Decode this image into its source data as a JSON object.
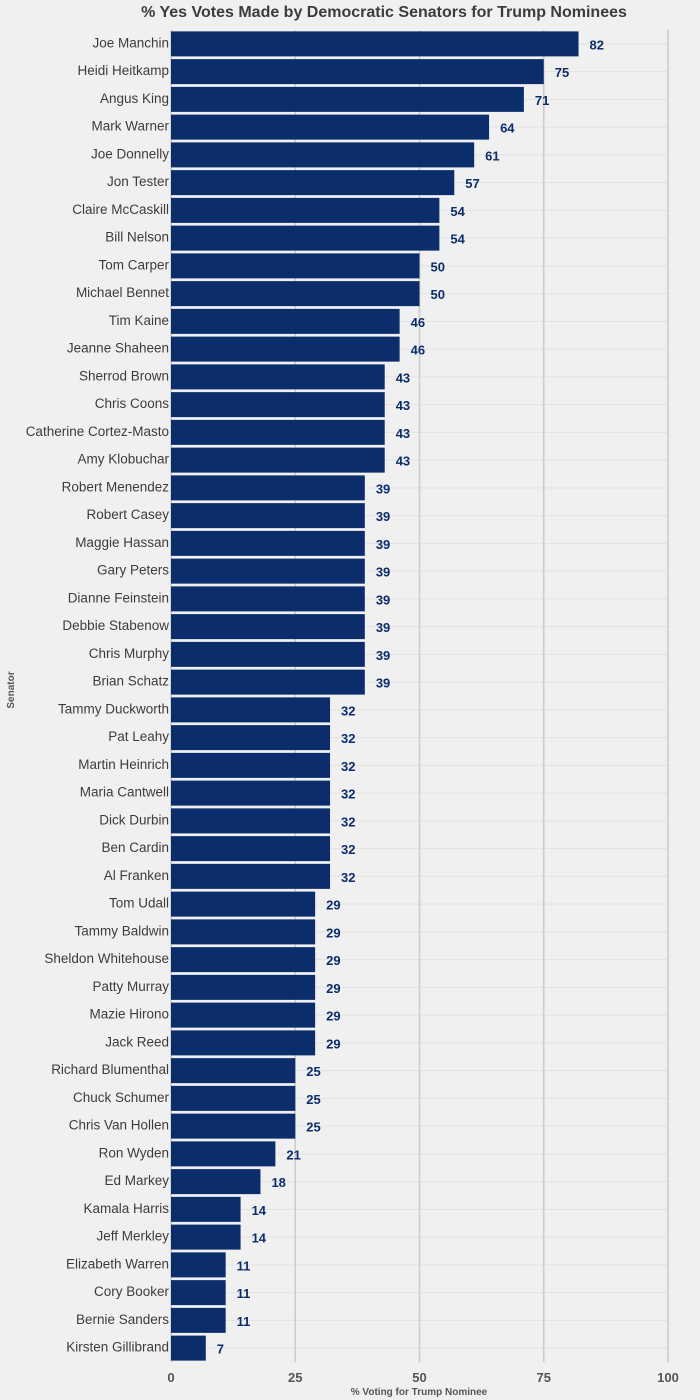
{
  "chart_data": {
    "type": "bar",
    "orientation": "horizontal",
    "title": "% Yes Votes Made by Democratic Senators for Trump Nominees",
    "xlabel": "% Voting for Trump Nominee",
    "ylabel": "Senator",
    "xlim": [
      0,
      100
    ],
    "xticks": [
      0,
      25,
      50,
      75,
      100
    ],
    "bar_color": "#0b2d6b",
    "label_color": "#0b2d6b",
    "background": "#f0f0f0",
    "categories": [
      "Joe Manchin",
      "Heidi Heitkamp",
      "Angus King",
      "Mark Warner",
      "Joe Donnelly",
      "Jon Tester",
      "Claire McCaskill",
      "Bill Nelson",
      "Tom Carper",
      "Michael Bennet",
      "Tim Kaine",
      "Jeanne Shaheen",
      "Sherrod Brown",
      "Chris Coons",
      "Catherine Cortez-Masto",
      "Amy Klobuchar",
      "Robert Menendez",
      "Robert Casey",
      "Maggie Hassan",
      "Gary Peters",
      "Dianne Feinstein",
      "Debbie Stabenow",
      "Chris Murphy",
      "Brian Schatz",
      "Tammy Duckworth",
      "Pat Leahy",
      "Martin Heinrich",
      "Maria Cantwell",
      "Dick Durbin",
      "Ben Cardin",
      "Al Franken",
      "Tom Udall",
      "Tammy Baldwin",
      "Sheldon Whitehouse",
      "Patty Murray",
      "Mazie Hirono",
      "Jack Reed",
      "Richard Blumenthal",
      "Chuck Schumer",
      "Chris Van Hollen",
      "Ron Wyden",
      "Ed Markey",
      "Kamala Harris",
      "Jeff Merkley",
      "Elizabeth Warren",
      "Cory Booker",
      "Bernie Sanders",
      "Kirsten Gillibrand"
    ],
    "values": [
      82,
      75,
      71,
      64,
      61,
      57,
      54,
      54,
      50,
      50,
      46,
      46,
      43,
      43,
      43,
      43,
      39,
      39,
      39,
      39,
      39,
      39,
      39,
      39,
      32,
      32,
      32,
      32,
      32,
      32,
      32,
      29,
      29,
      29,
      29,
      29,
      29,
      25,
      25,
      25,
      21,
      18,
      14,
      14,
      11,
      11,
      11,
      7
    ]
  }
}
